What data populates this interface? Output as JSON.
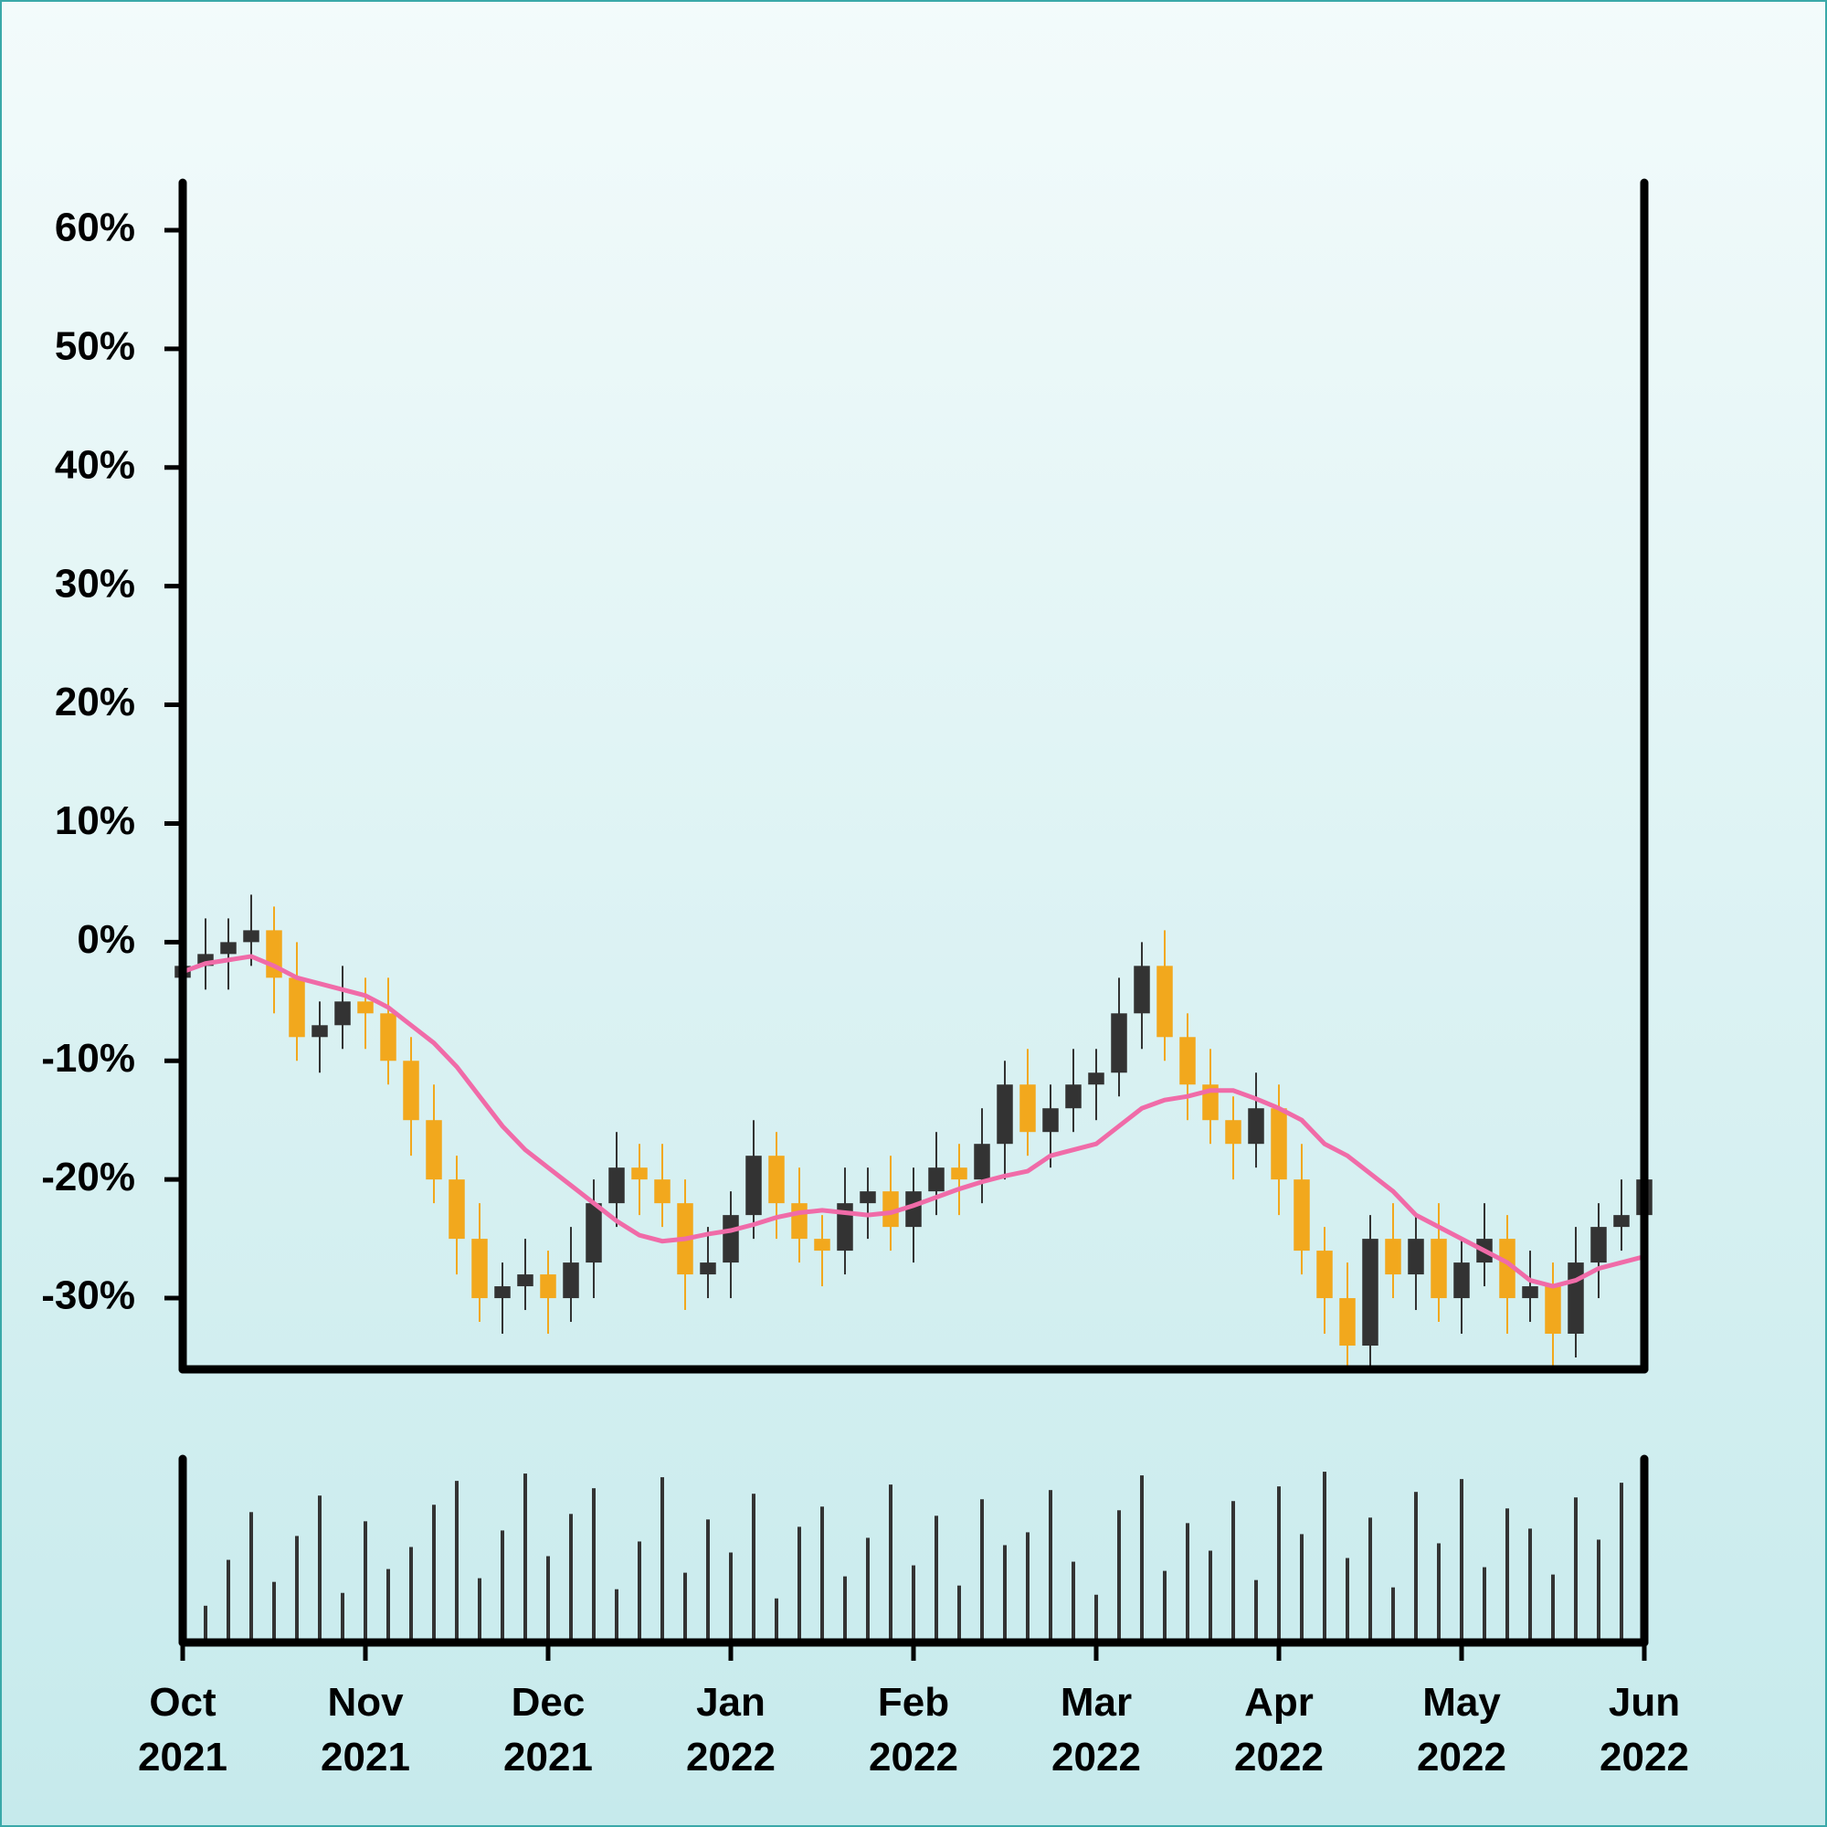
{
  "chart_data": {
    "type": "candlestick",
    "categories": [
      "Oct 2021",
      null,
      null,
      null,
      null,
      null,
      null,
      null,
      "Nov 2021",
      null,
      null,
      null,
      null,
      null,
      null,
      null,
      "Dec 2021",
      null,
      null,
      null,
      null,
      null,
      null,
      null,
      "Jan 2022",
      null,
      null,
      null,
      null,
      null,
      null,
      null,
      "Feb 2022",
      null,
      null,
      null,
      null,
      null,
      null,
      null,
      "Mar 2022",
      null,
      null,
      null,
      null,
      null,
      null,
      null,
      "Apr 2022",
      null,
      null,
      null,
      null,
      null,
      null,
      null,
      "May 2022",
      null,
      null,
      null,
      null,
      null,
      null,
      null,
      "Jun 2022"
    ],
    "open": [
      -3,
      -2,
      -1,
      0,
      1,
      -3,
      -8,
      -7,
      -5,
      -6,
      -10,
      -15,
      -20,
      -25,
      -30,
      -29,
      -28,
      -30,
      -27,
      -22,
      -19,
      -20,
      -22,
      -28,
      -27,
      -23,
      -18,
      -22,
      -25,
      -26,
      -22,
      -21,
      -24,
      -21,
      -19,
      -20,
      -17,
      -12,
      -16,
      -14,
      -12,
      -11,
      -6,
      -2,
      -8,
      -12,
      -15,
      -17,
      -14,
      -20,
      -26,
      -30,
      -34,
      -25,
      -28,
      -25,
      -30,
      -27,
      -25,
      -30,
      -29,
      -33,
      -27,
      -24,
      -23
    ],
    "high": [
      0,
      2,
      2,
      4,
      3,
      0,
      -5,
      -2,
      -3,
      -3,
      -8,
      -12,
      -18,
      -22,
      -27,
      -25,
      -26,
      -24,
      -20,
      -16,
      -17,
      -17,
      -20,
      -24,
      -21,
      -15,
      -16,
      -19,
      -23,
      -19,
      -19,
      -18,
      -19,
      -16,
      -17,
      -14,
      -10,
      -9,
      -12,
      -9,
      -9,
      -3,
      0,
      1,
      -6,
      -9,
      -13,
      -11,
      -12,
      -17,
      -24,
      -27,
      -23,
      -22,
      -23,
      -22,
      -25,
      -22,
      -23,
      -26,
      -27,
      -24,
      -22,
      -20,
      -18
    ],
    "low": [
      -6,
      -4,
      -4,
      -2,
      -6,
      -10,
      -11,
      -9,
      -9,
      -12,
      -18,
      -22,
      -28,
      -32,
      -33,
      -31,
      -33,
      -32,
      -30,
      -24,
      -23,
      -24,
      -31,
      -30,
      -30,
      -25,
      -25,
      -27,
      -29,
      -28,
      -25,
      -26,
      -27,
      -23,
      -23,
      -22,
      -20,
      -18,
      -19,
      -16,
      -15,
      -13,
      -9,
      -10,
      -15,
      -17,
      -20,
      -19,
      -23,
      -28,
      -33,
      -36,
      -36,
      -30,
      -31,
      -32,
      -33,
      -29,
      -33,
      -32,
      -36,
      -35,
      -30,
      -26,
      -26
    ],
    "close": [
      -2,
      -1,
      0,
      1,
      -3,
      -8,
      -7,
      -5,
      -6,
      -10,
      -15,
      -20,
      -25,
      -30,
      -29,
      -28,
      -30,
      -27,
      -22,
      -19,
      -20,
      -22,
      -28,
      -27,
      -23,
      -18,
      -22,
      -25,
      -26,
      -22,
      -21,
      -24,
      -21,
      -19,
      -20,
      -17,
      -12,
      -16,
      -14,
      -12,
      -11,
      -6,
      -2,
      -8,
      -12,
      -15,
      -17,
      -14,
      -20,
      -26,
      -30,
      -34,
      -25,
      -28,
      -25,
      -30,
      -27,
      -25,
      -30,
      -29,
      -33,
      -27,
      -24,
      -23,
      -20
    ],
    "up_color": "#333333",
    "down_color": "#f2a81d",
    "ma": {
      "color": "#f06ba8",
      "values": [
        -2.5,
        -1.8,
        -1.5,
        -1.2,
        -2,
        -3,
        -3.5,
        -4,
        -4.5,
        -5.5,
        -7,
        -8.5,
        -10.5,
        -13,
        -15.5,
        -17.5,
        -19,
        -20.5,
        -22,
        -23.5,
        -24.7,
        -25.2,
        -25,
        -24.6,
        -24.3,
        -23.8,
        -23.2,
        -22.8,
        -22.6,
        -22.8,
        -23,
        -22.8,
        -22.2,
        -21.5,
        -20.8,
        -20.2,
        -19.7,
        -19.3,
        -18,
        -17.5,
        -17,
        -15.5,
        -14,
        -13.3,
        -13,
        -12.5,
        -12.5,
        -13.2,
        -14,
        -15,
        -17,
        -18,
        -19.5,
        -21,
        -23,
        -24,
        -25,
        -26,
        -27,
        -28.5,
        -29,
        -28.5,
        -27.5,
        -27,
        -26.5
      ]
    },
    "volume": {
      "color": "#333333",
      "ylim": [
        0,
        100
      ],
      "values": [
        62,
        20,
        45,
        71,
        33,
        58,
        80,
        27,
        66,
        40,
        52,
        75,
        88,
        35,
        61,
        92,
        47,
        70,
        84,
        29,
        55,
        90,
        38,
        67,
        49,
        81,
        24,
        63,
        74,
        36,
        57,
        86,
        42,
        69,
        31,
        78,
        53,
        60,
        83,
        44,
        26,
        72,
        91,
        39,
        65,
        50,
        77,
        34,
        85,
        59,
        93,
        46,
        68,
        30,
        82,
        54,
        89,
        41,
        73,
        62,
        37,
        79,
        56,
        87,
        48
      ]
    },
    "ylim": [
      -36,
      64
    ],
    "yticks": [
      {
        "value": -30,
        "label": "-30%"
      },
      {
        "value": -20,
        "label": "-20%"
      },
      {
        "value": -10,
        "label": "-10%"
      },
      {
        "value": 0,
        "label": "0%"
      },
      {
        "value": 10,
        "label": "10%"
      },
      {
        "value": 20,
        "label": "20%"
      },
      {
        "value": 30,
        "label": "30%"
      },
      {
        "value": 40,
        "label": "40%"
      },
      {
        "value": 50,
        "label": "50%"
      },
      {
        "value": 60,
        "label": "60%"
      }
    ]
  }
}
